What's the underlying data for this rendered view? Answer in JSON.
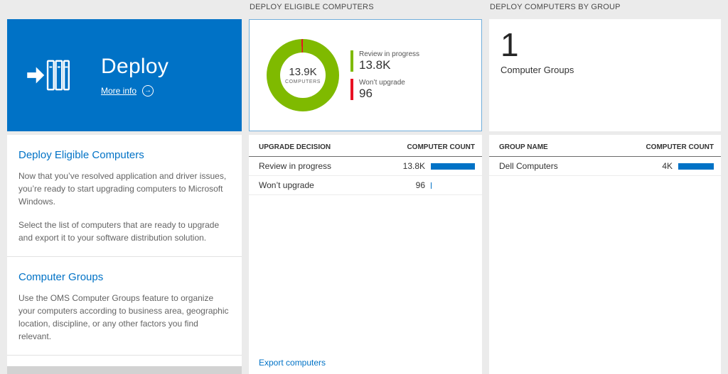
{
  "colors": {
    "accent_blue": "#0072c6",
    "donut_green": "#7fba00",
    "donut_red": "#e81123",
    "bar_blue": "#0072c6"
  },
  "left": {
    "tile": {
      "title": "Deploy",
      "more_info_label": "More info"
    },
    "sections": [
      {
        "heading": "Deploy Eligible Computers",
        "paragraphs": [
          "Now that you’ve resolved application and driver issues, you’re ready to start upgrading computers to Microsoft Windows.",
          "Select the list of computers that are ready to upgrade and export it to your software distribution solution."
        ]
      },
      {
        "heading": "Computer Groups",
        "paragraphs": [
          "Use the OMS Computer Groups feature to organize your computers according to business area, geographic location, discipline, or any other factors you find relevant."
        ]
      }
    ]
  },
  "middle": {
    "header": "DEPLOY ELIGIBLE COMPUTERS",
    "donut": {
      "center_value": "13.9K",
      "center_label": "COMPUTERS",
      "legend": [
        {
          "label": "Review in progress",
          "value": "13.8K"
        },
        {
          "label": "Won’t upgrade",
          "value": "96"
        }
      ]
    },
    "table": {
      "columns": [
        "UPGRADE DECISION",
        "COMPUTER COUNT"
      ],
      "rows": [
        {
          "label": "Review in progress",
          "value": "13.8K",
          "bar_pct": 100
        },
        {
          "label": "Won’t upgrade",
          "value": "96",
          "bar_pct": 2
        }
      ]
    },
    "footer_link": "Export computers"
  },
  "right": {
    "header": "DEPLOY COMPUTERS BY GROUP",
    "tile": {
      "value": "1",
      "label": "Computer Groups"
    },
    "table": {
      "columns": [
        "GROUP NAME",
        "COMPUTER COUNT"
      ],
      "rows": [
        {
          "label": "Dell Computers",
          "value": "4K",
          "bar_pct": 100
        }
      ]
    }
  },
  "chart_data": [
    {
      "type": "pie",
      "title": "Deploy Eligible Computers",
      "center_value": "13.9K",
      "center_label": "COMPUTERS",
      "segments": [
        {
          "label": "Review in progress",
          "value": 13800,
          "color": "#7fba00"
        },
        {
          "label": "Won’t upgrade",
          "value": 96,
          "color": "#e81123"
        }
      ],
      "legend_position": "right"
    },
    {
      "type": "table",
      "title": "DEPLOY ELIGIBLE COMPUTERS",
      "columns": [
        "UPGRADE DECISION",
        "COMPUTER COUNT"
      ],
      "rows": [
        [
          "Review in progress",
          "13.8K"
        ],
        [
          "Won’t upgrade",
          "96"
        ]
      ]
    },
    {
      "type": "table",
      "title": "DEPLOY COMPUTERS BY GROUP",
      "columns": [
        "GROUP NAME",
        "COMPUTER COUNT"
      ],
      "rows": [
        [
          "Dell Computers",
          "4K"
        ]
      ]
    }
  ]
}
